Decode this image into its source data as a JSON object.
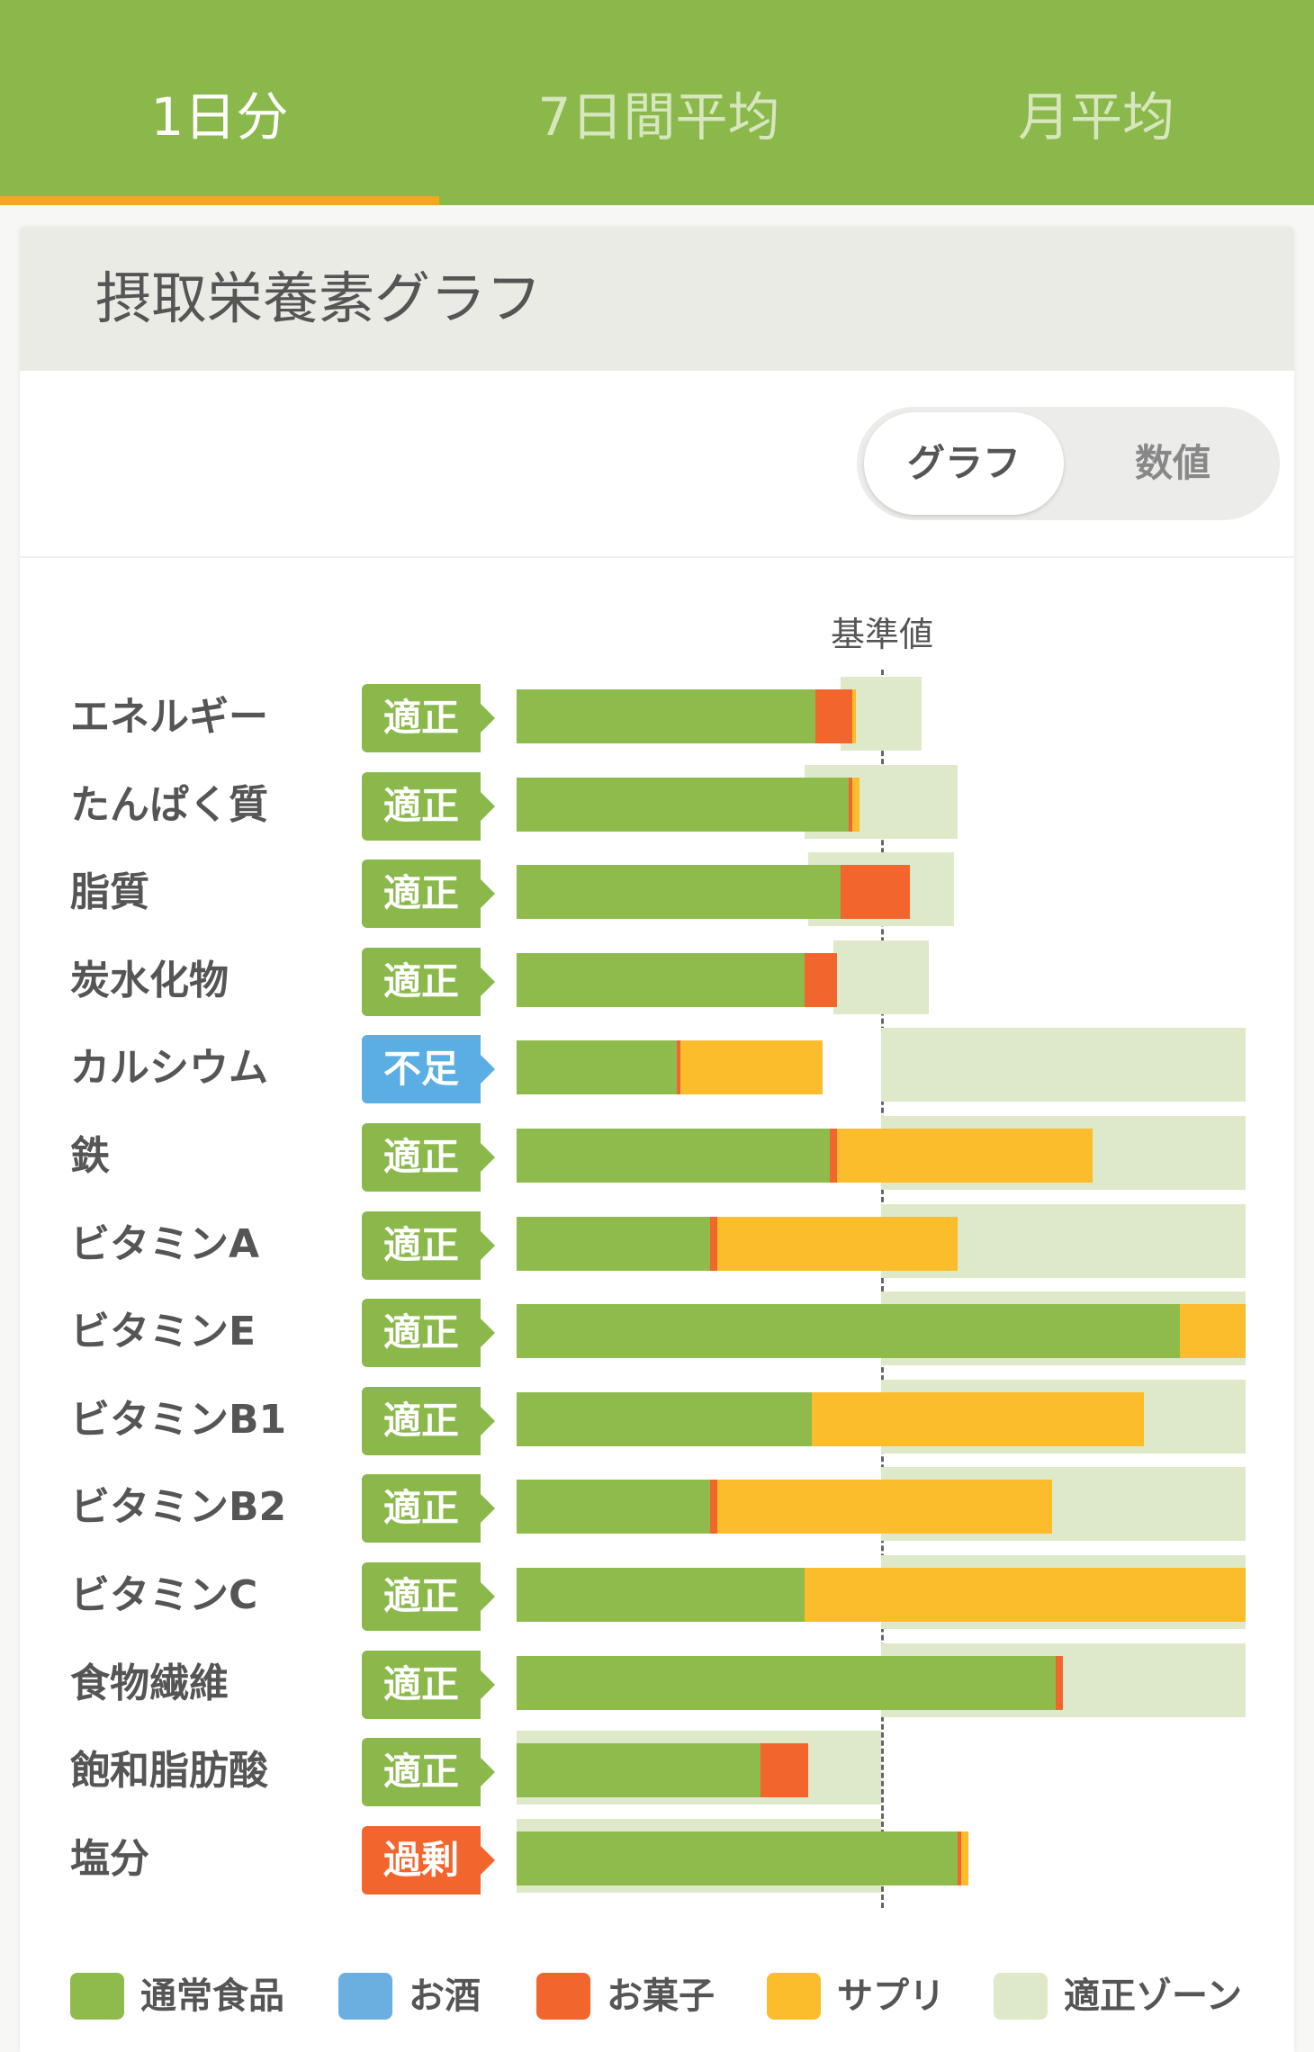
{
  "tabs": [
    {
      "label": "1日分",
      "active": true
    },
    {
      "label": "7日間平均",
      "active": false
    },
    {
      "label": "月平均",
      "active": false
    }
  ],
  "card": {
    "title": "摂取栄養素グラフ"
  },
  "view_toggle": {
    "options": [
      {
        "label": "グラフ",
        "selected": true
      },
      {
        "label": "数値",
        "selected": false
      }
    ]
  },
  "colors": {
    "normal_food": "#8fbb4d",
    "alcohol": "#6aafe0",
    "snack": "#f2652d",
    "supplement": "#fbbd2b",
    "proper_zone": "#dde9c9",
    "status_proper": "#8ab84a",
    "status_low": "#5aaee3",
    "status_excess": "#f2652d"
  },
  "status_labels": {
    "proper": "適正",
    "low": "不足",
    "excess": "過剰"
  },
  "chart_data": {
    "type": "bar",
    "orientation": "horizontal",
    "stacked": true,
    "reference_label": "基準値",
    "reference_value": 100,
    "value_unit": "% of 基準値",
    "xlim": [
      0,
      200
    ],
    "categories": [
      "エネルギー",
      "たんぱく質",
      "脂質",
      "炭水化物",
      "カルシウム",
      "鉄",
      "ビタミンA",
      "ビタミンE",
      "ビタミンB1",
      "ビタミンB2",
      "ビタミンC",
      "食物繊維",
      "飽和脂肪酸",
      "塩分"
    ],
    "status": [
      "proper",
      "proper",
      "proper",
      "proper",
      "low",
      "proper",
      "proper",
      "proper",
      "proper",
      "proper",
      "proper",
      "proper",
      "proper",
      "excess"
    ],
    "series": [
      {
        "name": "通常食品",
        "color": "#8fbb4d",
        "values": [
          82,
          91,
          89,
          79,
          44,
          86,
          53,
          182,
          81,
          53,
          79,
          148,
          67,
          121
        ]
      },
      {
        "name": "お酒",
        "color": "#6aafe0",
        "values": [
          0,
          0,
          0,
          0,
          0,
          0,
          0,
          0,
          0,
          0,
          0,
          0,
          0,
          0
        ]
      },
      {
        "name": "お菓子",
        "color": "#f2652d",
        "values": [
          10,
          1,
          19,
          9,
          1,
          2,
          2,
          0,
          0,
          2,
          0,
          2,
          13,
          1
        ]
      },
      {
        "name": "サプリ",
        "color": "#fbbd2b",
        "values": [
          1,
          2,
          0,
          0,
          39,
          70,
          66,
          18,
          91,
          92,
          121,
          0,
          0,
          2
        ]
      }
    ],
    "proper_zone": {
      "name": "適正ゾーン",
      "ranges": [
        [
          89,
          111
        ],
        [
          79,
          121
        ],
        [
          80,
          120
        ],
        [
          87,
          113
        ],
        [
          100,
          200
        ],
        [
          100,
          200
        ],
        [
          100,
          200
        ],
        [
          100,
          200
        ],
        [
          100,
          200
        ],
        [
          100,
          200
        ],
        [
          100,
          200
        ],
        [
          100,
          200
        ],
        [
          0,
          100
        ],
        [
          0,
          100
        ]
      ]
    },
    "legend": [
      "通常食品",
      "お酒",
      "お菓子",
      "サプリ",
      "適正ゾーン"
    ],
    "legend_position": "bottom"
  }
}
